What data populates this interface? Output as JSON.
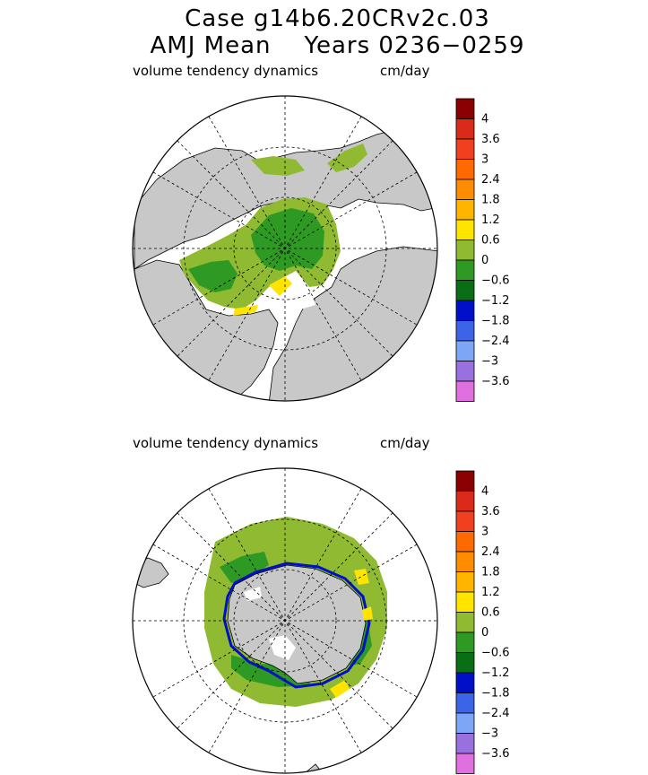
{
  "title": {
    "line1": "Case g14b6.20CRv2c.03",
    "line2": "AMJ Mean    Years 0236−0259"
  },
  "panels": [
    {
      "id": "north",
      "variable": "volume tendency dynamics",
      "units": "cm/day",
      "hemisphere": "Northern"
    },
    {
      "id": "south",
      "variable": "volume tendency dynamics",
      "units": "cm/day",
      "hemisphere": "Southern"
    }
  ],
  "colors": {
    "land": "#c8c8c8",
    "background": "#ffffff"
  },
  "chart_data": {
    "type": "heatmap",
    "projection": "polar stereographic",
    "title": "Case g14b6.20CRv2c.03 AMJ Mean Years 0236-0259",
    "variable": "volume tendency dynamics",
    "units": "cm/day",
    "colorbar": {
      "levels": [
        {
          "label": "4",
          "value": 4.0,
          "color": "#8b0000"
        },
        {
          "label": "3.6",
          "value": 3.6,
          "color": "#dc2a1a"
        },
        {
          "label": "3",
          "value": 3.0,
          "color": "#f04020"
        },
        {
          "label": "2.4",
          "value": 2.4,
          "color": "#ff6a00"
        },
        {
          "label": "1.8",
          "value": 1.8,
          "color": "#ff8c00"
        },
        {
          "label": "1.2",
          "value": 1.2,
          "color": "#ffb400"
        },
        {
          "label": "0.6",
          "value": 0.6,
          "color": "#ffe400"
        },
        {
          "label": "0",
          "value": 0.0,
          "color": "#8fba32"
        },
        {
          "label": "−0.6",
          "value": -0.6,
          "color": "#2e9a24"
        },
        {
          "label": "−1.2",
          "value": -1.2,
          "color": "#0a6e14"
        },
        {
          "label": "−1.8",
          "value": -1.8,
          "color": "#0010c8"
        },
        {
          "label": "−2.4",
          "value": -2.4,
          "color": "#3c64e6"
        },
        {
          "label": "−3",
          "value": -3.0,
          "color": "#7ea6f6"
        },
        {
          "label": "−3.6",
          "value": -3.6,
          "color": "#9a70e0"
        },
        {
          "label": "",
          "value": -4.0,
          "color": "#e070e0"
        }
      ]
    }
  }
}
